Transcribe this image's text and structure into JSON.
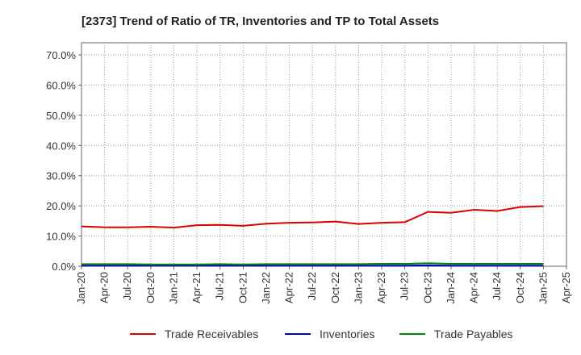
{
  "chart_data": {
    "type": "line",
    "title": "[2373]  Trend of Ratio of TR, Inventories and TP to Total Assets",
    "x": [
      "2020-01",
      "2020-04",
      "2020-07",
      "2020-10",
      "2021-01",
      "2021-04",
      "2021-07",
      "2021-10",
      "2022-01",
      "2022-04",
      "2022-07",
      "2022-10",
      "2023-01",
      "2023-04",
      "2023-07",
      "2023-10",
      "2024-01",
      "2024-04",
      "2024-07",
      "2024-10",
      "2025-01"
    ],
    "x_ticks": [
      "Jan-20",
      "Apr-20",
      "Jul-20",
      "Oct-20",
      "Jan-21",
      "Apr-21",
      "Jul-21",
      "Oct-21",
      "Jan-22",
      "Apr-22",
      "Jul-22",
      "Oct-22",
      "Jan-23",
      "Apr-23",
      "Jul-23",
      "Oct-23",
      "Jan-24",
      "Apr-24",
      "Jul-24",
      "Oct-24",
      "Jan-25",
      "Apr-25"
    ],
    "y_ticks": [
      "0.0%",
      "10.0%",
      "20.0%",
      "30.0%",
      "40.0%",
      "50.0%",
      "60.0%",
      "70.0%"
    ],
    "ylim": [
      0,
      74
    ],
    "grid": true,
    "legend_position": "bottom",
    "series": [
      {
        "name": "Trade Receivables",
        "color": "#dd0000",
        "values": [
          13.2,
          12.9,
          12.9,
          13.1,
          12.8,
          13.6,
          13.7,
          13.4,
          14.1,
          14.4,
          14.5,
          14.8,
          14.0,
          14.4,
          14.6,
          18.0,
          17.7,
          18.7,
          18.3,
          19.6,
          19.9
        ]
      },
      {
        "name": "Inventories",
        "color": "#0000cc",
        "values": [
          0.2,
          0.2,
          0.2,
          0.2,
          0.2,
          0.2,
          0.2,
          0.2,
          0.2,
          0.2,
          0.2,
          0.2,
          0.2,
          0.2,
          0.2,
          0.3,
          0.2,
          0.2,
          0.2,
          0.2,
          0.2
        ]
      },
      {
        "name": "Trade Payables",
        "color": "#008800",
        "values": [
          0.7,
          0.7,
          0.7,
          0.6,
          0.6,
          0.6,
          0.7,
          0.6,
          0.7,
          0.7,
          0.7,
          0.7,
          0.7,
          0.8,
          0.8,
          1.0,
          0.8,
          0.8,
          0.8,
          0.8,
          0.8
        ]
      }
    ]
  }
}
